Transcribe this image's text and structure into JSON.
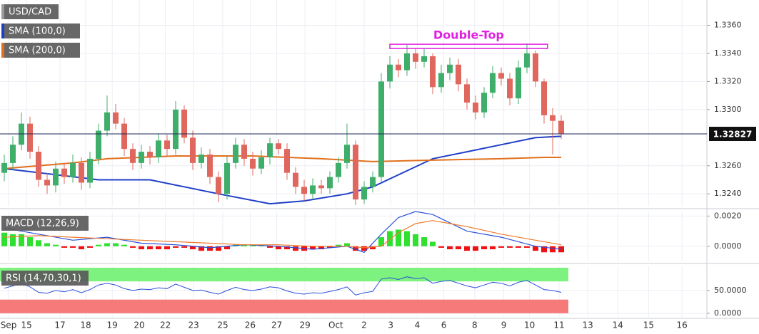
{
  "chart_data": [
    {
      "type": "candlestick",
      "title": "USD/CAD",
      "up_color": "#3fae6a",
      "down_color": "#e0675e",
      "symbol_color": "#9a9a9a",
      "open": [
        1.3255,
        1.3262,
        1.3275,
        1.329,
        1.327,
        1.325,
        1.3246,
        1.3258,
        1.3252,
        1.3262,
        1.3248,
        1.3265,
        1.3285,
        1.3298,
        1.329,
        1.3272,
        1.3262,
        1.327,
        1.3266,
        1.3278,
        1.3272,
        1.33,
        1.328,
        1.3262,
        1.3268,
        1.3252,
        1.324,
        1.3262,
        1.3275,
        1.3265,
        1.3258,
        1.3266,
        1.3276,
        1.3272,
        1.3255,
        1.3245,
        1.324,
        1.3246,
        1.3244,
        1.3252,
        1.3262,
        1.3275,
        1.3236,
        1.3245,
        1.3252,
        1.332,
        1.3332,
        1.3328,
        1.334,
        1.3334,
        1.3338,
        1.3316,
        1.3326,
        1.3332,
        1.3318,
        1.3305,
        1.3298,
        1.3312,
        1.3326,
        1.3322,
        1.3308,
        1.333,
        1.334,
        1.332,
        1.3296,
        1.3292
      ],
      "high": [
        1.3268,
        1.3281,
        1.3298,
        1.3295,
        1.3274,
        1.3255,
        1.3263,
        1.3262,
        1.3268,
        1.3266,
        1.327,
        1.329,
        1.331,
        1.3304,
        1.3294,
        1.3276,
        1.3275,
        1.3274,
        1.3283,
        1.3282,
        1.3306,
        1.3303,
        1.3285,
        1.3273,
        1.3272,
        1.3256,
        1.3267,
        1.328,
        1.3279,
        1.327,
        1.3271,
        1.328,
        1.3279,
        1.3276,
        1.3259,
        1.325,
        1.3251,
        1.325,
        1.3256,
        1.3266,
        1.329,
        1.3278,
        1.3249,
        1.3256,
        1.3326,
        1.3338,
        1.3336,
        1.3346,
        1.3344,
        1.3343,
        1.334,
        1.3332,
        1.3337,
        1.3336,
        1.3322,
        1.331,
        1.3316,
        1.3331,
        1.333,
        1.3326,
        1.3335,
        1.3347,
        1.3342,
        1.3322,
        1.3301,
        1.3296
      ],
      "low": [
        1.3249,
        1.3257,
        1.3271,
        1.3265,
        1.3245,
        1.324,
        1.3241,
        1.3247,
        1.3248,
        1.3243,
        1.3244,
        1.3261,
        1.3281,
        1.3286,
        1.3267,
        1.3257,
        1.3258,
        1.3261,
        1.3262,
        1.3267,
        1.3268,
        1.3276,
        1.3257,
        1.3258,
        1.3247,
        1.3234,
        1.3236,
        1.3258,
        1.326,
        1.3253,
        1.3254,
        1.3261,
        1.3268,
        1.325,
        1.324,
        1.3235,
        1.3236,
        1.324,
        1.324,
        1.3248,
        1.3258,
        1.3232,
        1.3233,
        1.3241,
        1.3248,
        1.3315,
        1.3323,
        1.3324,
        1.3329,
        1.333,
        1.3311,
        1.3312,
        1.3321,
        1.3313,
        1.33,
        1.3293,
        1.3294,
        1.3308,
        1.3317,
        1.3303,
        1.3304,
        1.3326,
        1.3316,
        1.329,
        1.3268,
        1.3279
      ],
      "close": [
        1.3262,
        1.3275,
        1.329,
        1.327,
        1.325,
        1.3246,
        1.3258,
        1.3252,
        1.3262,
        1.3248,
        1.3265,
        1.3285,
        1.3298,
        1.329,
        1.3272,
        1.3262,
        1.327,
        1.3266,
        1.3278,
        1.3272,
        1.33,
        1.328,
        1.3262,
        1.3268,
        1.3252,
        1.324,
        1.3262,
        1.3275,
        1.3265,
        1.3258,
        1.3266,
        1.3276,
        1.3272,
        1.3255,
        1.3245,
        1.324,
        1.3246,
        1.3244,
        1.3252,
        1.3262,
        1.3275,
        1.3236,
        1.3245,
        1.3252,
        1.332,
        1.3332,
        1.3328,
        1.334,
        1.3334,
        1.3338,
        1.3316,
        1.3326,
        1.3332,
        1.3318,
        1.3305,
        1.3298,
        1.3312,
        1.3326,
        1.3322,
        1.3308,
        1.333,
        1.334,
        1.332,
        1.3296,
        1.3292,
        1.3283
      ],
      "series": [
        {
          "name": "SMA (100,0)",
          "color": "#1f3fc8",
          "x": [
            0,
            11,
            17,
            25,
            31,
            35,
            40,
            43,
            50,
            54,
            58,
            62,
            65
          ],
          "values": [
            1.3258,
            1.325,
            1.325,
            1.324,
            1.3233,
            1.3235,
            1.324,
            1.3245,
            1.3265,
            1.327,
            1.3275,
            1.328,
            1.3281
          ]
        },
        {
          "name": "SMA (200,0)",
          "color": "#e0701e",
          "x": [
            0,
            8,
            12,
            20,
            29,
            37,
            43,
            50,
            58,
            63,
            65
          ],
          "values": [
            1.3258,
            1.3262,
            1.3265,
            1.3267,
            1.3267,
            1.3265,
            1.3263,
            1.3264,
            1.3265,
            1.3266,
            1.3266
          ]
        }
      ],
      "ylim": [
        1.3231,
        1.3378
      ],
      "yticks": [
        {
          "value": 1.324,
          "label": "1.3240"
        },
        {
          "value": 1.326,
          "label": "1.3260"
        },
        {
          "value": 1.33,
          "label": "1.3300"
        },
        {
          "value": 1.332,
          "label": "1.3320"
        },
        {
          "value": 1.334,
          "label": "1.3340"
        },
        {
          "value": 1.336,
          "label": "1.3360"
        }
      ],
      "current_price": 1.32827,
      "annotations": [
        {
          "text": "Double-Top",
          "x": [
            45,
            63.4
          ],
          "y": 1.3345,
          "color": "#e020e0"
        }
      ]
    },
    {
      "type": "macd",
      "title": "MACD (12,26,9)",
      "histogram": [
        0.0009,
        0.0008,
        0.0008,
        0.0006,
        0.0004,
        0.0002,
        0.0001,
        -0.0001,
        -0.0001,
        -0.0002,
        -0.0001,
        0.0001,
        0.0002,
        0.0002,
        0.0001,
        -0.0001,
        -0.0002,
        -0.0002,
        -0.0002,
        -0.0002,
        -0.0001,
        -0.0001,
        -0.0002,
        -0.0003,
        -0.0003,
        -0.0003,
        -0.0002,
        0.0001,
        0.0001,
        0.0001,
        0.0001,
        -0.0001,
        -0.0002,
        -0.0002,
        -0.0003,
        -0.0003,
        -0.0002,
        -0.0002,
        -0.0001,
        0.0001,
        0.0002,
        -0.0003,
        -0.0003,
        -0.0002,
        0.0006,
        0.001,
        0.0011,
        0.001,
        0.0008,
        0.0006,
        0.0003,
        -0.0001,
        -0.0002,
        -0.0002,
        -0.0003,
        -0.0003,
        -0.0002,
        -0.0002,
        -0.0001,
        -0.0001,
        -0.0001,
        -0.0001,
        -0.0003,
        -0.0004,
        -0.0004,
        -0.0004
      ],
      "pos_color": "#2fe02f",
      "neg_color": "#ee1111",
      "series": [
        {
          "color": "#2a4fd8",
          "x": [
            0,
            4,
            8,
            12,
            16,
            20,
            24,
            28,
            32,
            36,
            40,
            42,
            44,
            46,
            48,
            50,
            54,
            58,
            62,
            65
          ],
          "values": [
            0.0012,
            0.0008,
            0.0004,
            0.0006,
            0.0002,
            0.0001,
            -0.0001,
            0.0001,
            0,
            -0.0002,
            0,
            -0.0004,
            0.0008,
            0.0019,
            0.0023,
            0.0021,
            0.001,
            0.0006,
            0,
            -0.0002
          ]
        },
        {
          "color": "#ee7a2a",
          "x": [
            0,
            4,
            8,
            12,
            16,
            20,
            24,
            28,
            32,
            36,
            40,
            42,
            44,
            46,
            48,
            50,
            54,
            58,
            62,
            65
          ],
          "values": [
            0.0006,
            0.0007,
            0.0006,
            0.0005,
            0.0004,
            0.0003,
            0.0002,
            0.0001,
            0.0001,
            0,
            0,
            -0.0001,
            0,
            0.0009,
            0.0015,
            0.0017,
            0.0013,
            0.0008,
            0.0004,
            0.0001
          ]
        }
      ],
      "ylim": [
        -0.001,
        0.0023
      ],
      "yticks": [
        {
          "value": 0,
          "label": "0.0000"
        },
        {
          "value": 0.002,
          "label": "0.0020"
        }
      ]
    },
    {
      "type": "rsi",
      "title": "RSI (14,70,30,1)",
      "color": "#2a4fd8",
      "values": [
        55,
        60,
        66,
        58,
        46,
        44,
        50,
        47,
        52,
        45,
        52,
        62,
        66,
        62,
        54,
        50,
        53,
        52,
        56,
        54,
        64,
        57,
        50,
        51,
        46,
        42,
        50,
        57,
        52,
        50,
        53,
        58,
        56,
        49,
        44,
        42,
        45,
        44,
        48,
        52,
        58,
        40,
        45,
        48,
        75,
        78,
        74,
        80,
        76,
        78,
        66,
        70,
        72,
        66,
        60,
        56,
        62,
        68,
        66,
        60,
        68,
        72,
        62,
        52,
        50,
        46
      ],
      "bands": [
        {
          "from": 70,
          "to": 100,
          "color": "#7ef27e"
        },
        {
          "from": 0,
          "to": 30,
          "color": "#f77a7a"
        }
      ],
      "ylim": [
        -8,
        103
      ],
      "yticks": [
        {
          "value": 0,
          "label": "0.0000"
        },
        {
          "value": 50,
          "label": "50.0000"
        }
      ],
      "xlim": [
        -0.5,
        82
      ],
      "xticks": [
        {
          "value": 0.5,
          "label": "Sep"
        },
        {
          "value": 2.6,
          "label": "15"
        },
        {
          "value": 6.5,
          "label": "17"
        },
        {
          "value": 9.5,
          "label": "18"
        },
        {
          "value": 12.6,
          "label": "19"
        },
        {
          "value": 15.75,
          "label": "20"
        },
        {
          "value": 18.8,
          "label": "22"
        },
        {
          "value": 22.1,
          "label": "23"
        },
        {
          "value": 25.5,
          "label": "25"
        },
        {
          "value": 28.7,
          "label": "26"
        },
        {
          "value": 31.8,
          "label": "27"
        },
        {
          "value": 35.1,
          "label": "29"
        },
        {
          "value": 38.7,
          "label": "Oct"
        },
        {
          "value": 42,
          "label": "2"
        },
        {
          "value": 45.1,
          "label": "3"
        },
        {
          "value": 48.2,
          "label": "4"
        },
        {
          "value": 51.3,
          "label": "6"
        },
        {
          "value": 54.9,
          "label": "8"
        },
        {
          "value": 58.3,
          "label": "9"
        },
        {
          "value": 61.3,
          "label": "10"
        },
        {
          "value": 64.75,
          "label": "11"
        },
        {
          "value": 68.1,
          "label": "13"
        },
        {
          "value": 71.6,
          "label": "14"
        },
        {
          "value": 75.2,
          "label": "15"
        },
        {
          "value": 79.1,
          "label": "16"
        }
      ]
    }
  ]
}
